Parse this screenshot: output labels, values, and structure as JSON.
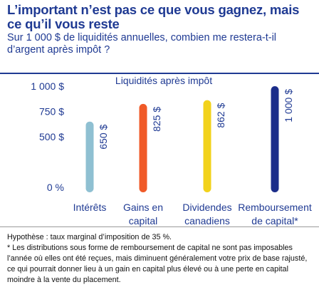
{
  "header": {
    "title": "L’important n’est pas ce que vous gagnez, mais ce qu’il vous reste",
    "subtitle": "Sur 1 000 $ de liquidités annuelles, combien me restera-t-il d’argent après impôt ?"
  },
  "chart_data": {
    "type": "bar",
    "title": "Liquidités après impôt",
    "categories": [
      [
        "Intérêts"
      ],
      [
        "Gains en",
        "capital"
      ],
      [
        "Dividendes",
        "canadiens"
      ],
      [
        "Remboursement",
        "de capital*"
      ]
    ],
    "values": [
      650,
      825,
      862,
      1000
    ],
    "value_labels": [
      "650 $",
      "825 $",
      "862 $",
      "1 000 $"
    ],
    "colors": [
      "#8fc0d2",
      "#f05a28",
      "#f2d21b",
      "#1b2d8a"
    ],
    "yticks": [
      {
        "value": 0,
        "label": "0 %"
      },
      {
        "value": 500,
        "label": "500 $"
      },
      {
        "value": 750,
        "label": "750 $"
      },
      {
        "value": 1000,
        "label": "1 000 $"
      }
    ],
    "ylim": [
      0,
      1000
    ],
    "grid": false
  },
  "footnotes": {
    "hypothesis": "Hypothèse : taux marginal d’imposition de 35 %.",
    "note": "* Les distributions sous forme de remboursement de capital ne sont pas imposables l’année où elles ont été reçues, mais diminuent généralement votre prix de base rajusté, ce qui pourrait donner lieu à un gain en capital plus élevé ou à une perte en capital moindre à la vente du placement."
  }
}
